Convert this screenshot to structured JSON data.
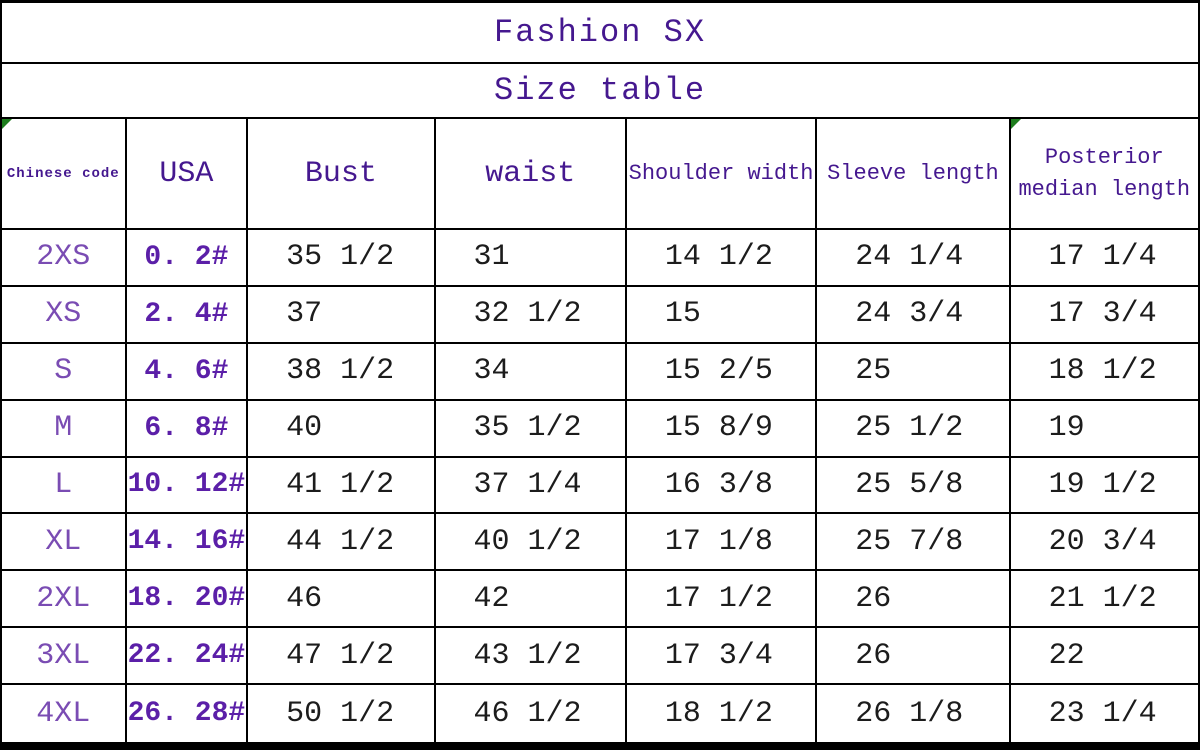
{
  "header": {
    "title": "Fashion SX",
    "subtitle": "Size table"
  },
  "table": {
    "columns": [
      "Chinese code",
      "USA",
      "Bust",
      "waist",
      "Shoulder width",
      "Sleeve length",
      "Posterior median length"
    ],
    "rows": [
      [
        "2XS",
        "0. 2#",
        "35 1/2",
        "31",
        "14 1/2",
        "24 1/4",
        "17 1/4"
      ],
      [
        "XS",
        "2. 4#",
        "37",
        "32 1/2",
        "15",
        "24 3/4",
        "17 3/4"
      ],
      [
        "S",
        "4. 6#",
        "38 1/2",
        "34",
        "15 2/5",
        "25",
        "18 1/2"
      ],
      [
        "M",
        "6. 8#",
        "40",
        "35 1/2",
        "15 8/9",
        "25 1/2",
        "19"
      ],
      [
        "L",
        "10. 12#",
        "41 1/2",
        "37 1/4",
        "16 3/8",
        "25 5/8",
        "19 1/2"
      ],
      [
        "XL",
        "14. 16#",
        "44 1/2",
        "40 1/2",
        "17 1/8",
        "25 7/8",
        "20 3/4"
      ],
      [
        "2XL",
        "18. 20#",
        "46",
        "42",
        "17 1/2",
        "26",
        "21 1/2"
      ],
      [
        "3XL",
        "22. 24#",
        "47 1/2",
        "43 1/2",
        "17 3/4",
        "26",
        "22"
      ],
      [
        "4XL",
        "26. 28#",
        "50 1/2",
        "46 1/2",
        "18 1/2",
        "26 1/8",
        "23 1/4"
      ]
    ]
  },
  "icons": {
    "cell_corner_flag": "green-corner-triangle"
  },
  "colors": {
    "title_purple": "#45188F",
    "size_label_purple": "#7A4CB3",
    "usa_value_purple": "#5B1FA8",
    "value_black": "#1C1C1C",
    "grid_black": "#000000",
    "flag_green": "#1E7D1E",
    "background": "#FFFFFF"
  }
}
